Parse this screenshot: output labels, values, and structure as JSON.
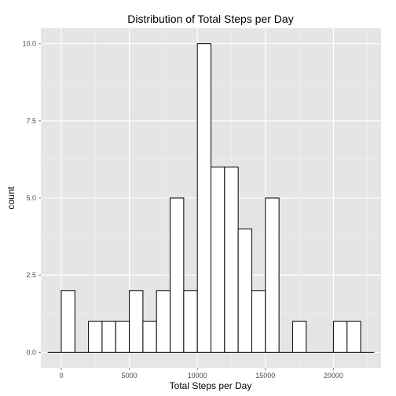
{
  "chart_data": {
    "type": "bar",
    "title": "Distribution of Total Steps per Day",
    "xlabel": "Total Steps per Day",
    "ylabel": "count",
    "xlim": [
      -1500,
      23500
    ],
    "ylim": [
      -0.5,
      10.5
    ],
    "x_ticks": [
      0,
      5000,
      10000,
      15000,
      20000
    ],
    "x_tick_labels": [
      "0",
      "5000",
      "10000",
      "15000",
      "20000"
    ],
    "y_ticks": [
      0,
      2.5,
      5,
      7.5,
      10
    ],
    "y_tick_labels": [
      "0.0",
      "2.5",
      "5.0",
      "7.5",
      "10.0"
    ],
    "bin_width": 1000,
    "bins_start": [
      -1000,
      0,
      1000,
      2000,
      3000,
      4000,
      5000,
      6000,
      7000,
      8000,
      9000,
      10000,
      11000,
      12000,
      13000,
      14000,
      15000,
      16000,
      17000,
      18000,
      19000,
      20000,
      21000,
      22000
    ],
    "values": [
      0,
      2,
      0,
      1,
      1,
      1,
      2,
      1,
      2,
      5,
      2,
      10,
      6,
      6,
      4,
      2,
      5,
      0,
      1,
      0,
      0,
      1,
      1,
      0
    ],
    "grid": true,
    "colors": {
      "panel_background": "#e5e5e5",
      "grid_major": "#ffffff",
      "grid_minor": "#f2f2f2",
      "bar_fill": "#ffffff",
      "bar_outline": "#000000"
    }
  }
}
